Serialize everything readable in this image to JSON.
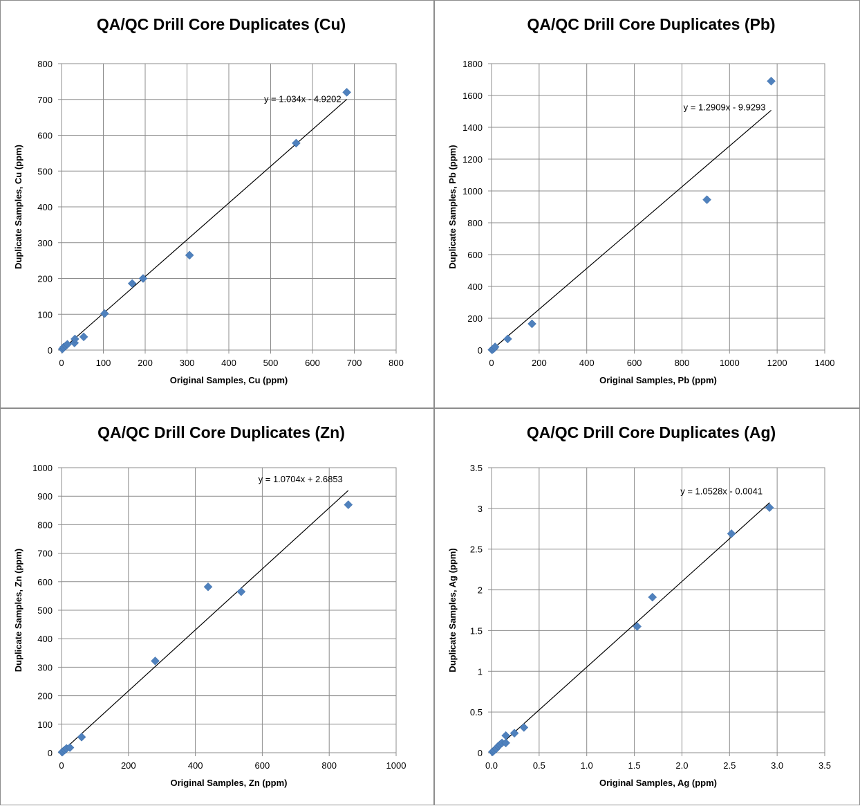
{
  "chart_data": [
    {
      "type": "scatter",
      "title": "QA/QC Drill Core Duplicates (Cu)",
      "xlabel": "Original Samples, Cu (ppm)",
      "ylabel": "Duplicate Samples, Cu (ppm)",
      "xlim": [
        0,
        800
      ],
      "ylim": [
        0,
        800
      ],
      "xticks": [
        0,
        100,
        200,
        300,
        400,
        500,
        600,
        700,
        800
      ],
      "yticks": [
        0,
        100,
        200,
        300,
        400,
        500,
        600,
        700,
        800
      ],
      "xticklabels": [
        "0",
        "100",
        "200",
        "300",
        "400",
        "500",
        "600",
        "700",
        "800"
      ],
      "yticklabels": [
        "0",
        "100",
        "200",
        "300",
        "400",
        "500",
        "600",
        "700",
        "800"
      ],
      "grid": true,
      "marker_color": "#4f81bd",
      "points": [
        [
          2,
          3
        ],
        [
          5,
          8
        ],
        [
          10,
          12
        ],
        [
          14,
          16
        ],
        [
          31,
          20
        ],
        [
          32,
          31
        ],
        [
          53,
          37
        ],
        [
          103,
          102
        ],
        [
          169,
          186
        ],
        [
          195,
          200
        ],
        [
          306,
          265
        ],
        [
          561,
          578
        ],
        [
          682,
          720
        ]
      ],
      "trendline": {
        "slope": 1.034,
        "intercept": -4.9202,
        "x_range": [
          0,
          682
        ],
        "label": "y = 1.034x - 4.9202"
      }
    },
    {
      "type": "scatter",
      "title": "QA/QC Drill Core Duplicates (Pb)",
      "xlabel": "Original Samples, Pb (ppm)",
      "ylabel": "Duplicate Samples, Pb (ppm)",
      "xlim": [
        0,
        1400
      ],
      "ylim": [
        0,
        1800
      ],
      "xticks": [
        0,
        200,
        400,
        600,
        800,
        1000,
        1200,
        1400
      ],
      "yticks": [
        0,
        200,
        400,
        600,
        800,
        1000,
        1200,
        1400,
        1600,
        1800
      ],
      "xticklabels": [
        "0",
        "200",
        "400",
        "600",
        "800",
        "1000",
        "1200",
        "1400"
      ],
      "yticklabels": [
        "0",
        "200",
        "400",
        "600",
        "800",
        "1000",
        "1200",
        "1400",
        "1600",
        "1800"
      ],
      "grid": true,
      "marker_color": "#4f81bd",
      "points": [
        [
          2,
          2
        ],
        [
          5,
          5
        ],
        [
          10,
          10
        ],
        [
          15,
          20
        ],
        [
          68,
          70
        ],
        [
          170,
          165
        ],
        [
          905,
          945
        ],
        [
          1175,
          1690
        ]
      ],
      "trendline": {
        "slope": 1.2909,
        "intercept": -9.9293,
        "x_range": [
          0,
          1175
        ],
        "label": "y = 1.2909x - 9.9293"
      }
    },
    {
      "type": "scatter",
      "title": "QA/QC Drill Core Duplicates (Zn)",
      "xlabel": "Original Samples, Zn (ppm)",
      "ylabel": "Duplicate Samples, Zn (ppm)",
      "xlim": [
        0,
        1000
      ],
      "ylim": [
        0,
        1000
      ],
      "xticks": [
        0,
        200,
        400,
        600,
        800,
        1000
      ],
      "yticks": [
        0,
        100,
        200,
        300,
        400,
        500,
        600,
        700,
        800,
        900,
        1000
      ],
      "xticklabels": [
        "0",
        "200",
        "400",
        "600",
        "800",
        "1000"
      ],
      "yticklabels": [
        "0",
        "100",
        "200",
        "300",
        "400",
        "500",
        "600",
        "700",
        "800",
        "900",
        "1000"
      ],
      "grid": true,
      "marker_color": "#4f81bd",
      "points": [
        [
          2,
          2
        ],
        [
          5,
          5
        ],
        [
          10,
          10
        ],
        [
          15,
          15
        ],
        [
          25,
          18
        ],
        [
          60,
          55
        ],
        [
          280,
          322
        ],
        [
          438,
          582
        ],
        [
          537,
          565
        ],
        [
          857,
          870
        ]
      ],
      "trendline": {
        "slope": 1.0704,
        "intercept": 2.6853,
        "x_range": [
          0,
          857
        ],
        "label": "y = 1.0704x + 2.6853"
      }
    },
    {
      "type": "scatter",
      "title": "QA/QC Drill Core Duplicates (Ag)",
      "xlabel": "Original Samples, Ag (ppm)",
      "ylabel": "Duplicate Samples, Ag (ppm)",
      "xlim": [
        0,
        3.5
      ],
      "ylim": [
        0,
        3.5
      ],
      "xticks": [
        0,
        0.5,
        1,
        1.5,
        2,
        2.5,
        3,
        3.5
      ],
      "yticks": [
        0,
        0.5,
        1,
        1.5,
        2,
        2.5,
        3,
        3.5
      ],
      "xticklabels": [
        "0.0",
        "0.5",
        "1.0",
        "1.5",
        "2.0",
        "2.5",
        "3.0",
        "3.5"
      ],
      "yticklabels": [
        "0",
        "0.5",
        "1",
        "1.5",
        "2",
        "2.5",
        "3",
        "3.5"
      ],
      "grid": true,
      "marker_color": "#4f81bd",
      "points": [
        [
          0.01,
          0.01
        ],
        [
          0.02,
          0.02
        ],
        [
          0.03,
          0.03
        ],
        [
          0.05,
          0.05
        ],
        [
          0.07,
          0.08
        ],
        [
          0.09,
          0.1
        ],
        [
          0.11,
          0.12
        ],
        [
          0.15,
          0.12
        ],
        [
          0.15,
          0.21
        ],
        [
          0.24,
          0.24
        ],
        [
          0.34,
          0.31
        ],
        [
          1.53,
          1.55
        ],
        [
          1.69,
          1.91
        ],
        [
          2.52,
          2.69
        ],
        [
          2.92,
          3.01
        ]
      ],
      "trendline": {
        "slope": 1.0528,
        "intercept": -0.0041,
        "x_range": [
          0,
          2.92
        ],
        "label": "y = 1.0528x - 0.0041"
      }
    }
  ]
}
